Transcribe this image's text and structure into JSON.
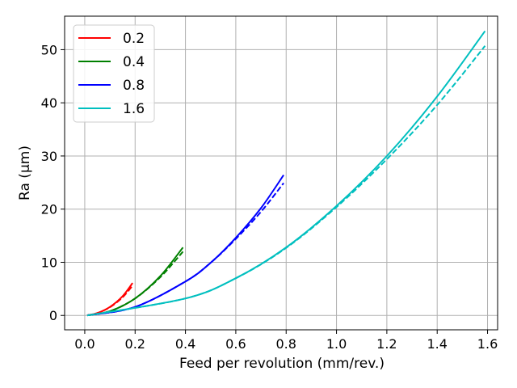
{
  "chart_data": {
    "type": "line",
    "title": "",
    "xlabel": "Feed per revolution (mm/rev.)",
    "ylabel": "Ra (µm)",
    "xlim": [
      -0.08,
      1.64
    ],
    "ylim": [
      -2.7,
      56.3
    ],
    "xticks": [
      "0.0",
      "0.2",
      "0.4",
      "0.6",
      "0.8",
      "1.0",
      "1.2",
      "1.4",
      "1.6"
    ],
    "yticks": [
      "0",
      "10",
      "20",
      "30",
      "40",
      "50"
    ],
    "grid": true,
    "legend_position": "top-left",
    "series": [
      {
        "name": "0.2",
        "color": "#ff0000",
        "solid": {
          "x": [
            0.01,
            0.05,
            0.1,
            0.15,
            0.19
          ],
          "y": [
            0.03,
            0.45,
            1.6,
            3.6,
            6.1
          ]
        },
        "dashed": {
          "x": [
            0.01,
            0.05,
            0.1,
            0.15,
            0.19
          ],
          "y": [
            0.03,
            0.45,
            1.55,
            3.4,
            5.6
          ]
        }
      },
      {
        "name": "0.4",
        "color": "#008000",
        "solid": {
          "x": [
            0.01,
            0.1,
            0.2,
            0.3,
            0.39
          ],
          "y": [
            0.02,
            0.8,
            3.2,
            7.4,
            12.8
          ]
        },
        "dashed": {
          "x": [
            0.01,
            0.1,
            0.2,
            0.3,
            0.39
          ],
          "y": [
            0.02,
            0.8,
            3.2,
            7.2,
            12.0
          ]
        }
      },
      {
        "name": "0.8",
        "color": "#0000ff",
        "solid": {
          "x": [
            0.01,
            0.2,
            0.4,
            0.5,
            0.6,
            0.7,
            0.79
          ],
          "y": [
            0.02,
            1.6,
            6.4,
            9.9,
            14.6,
            20.2,
            26.4
          ]
        },
        "dashed": {
          "x": [
            0.01,
            0.2,
            0.4,
            0.5,
            0.6,
            0.7,
            0.79
          ],
          "y": [
            0.02,
            1.6,
            6.4,
            9.9,
            14.4,
            19.5,
            24.9
          ]
        }
      },
      {
        "name": "1.6",
        "color": "#00bfbf",
        "solid": {
          "x": [
            0.01,
            0.4,
            0.6,
            0.8,
            1.0,
            1.2,
            1.4,
            1.59
          ],
          "y": [
            0.0,
            3.2,
            7.0,
            12.8,
            20.6,
            30.0,
            41.2,
            53.5
          ]
        },
        "dashed": {
          "x": [
            0.01,
            0.4,
            0.6,
            0.8,
            1.0,
            1.2,
            1.4,
            1.59
          ],
          "y": [
            0.0,
            3.2,
            7.0,
            12.7,
            20.4,
            29.4,
            39.6,
            50.7
          ]
        }
      }
    ]
  }
}
